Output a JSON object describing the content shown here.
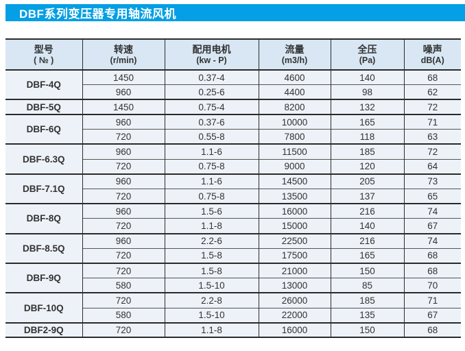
{
  "title": "DBF系列变压器专用轴流风机",
  "colors": {
    "accent_blue": "#049fe4",
    "header_bg": "#d8e7f3",
    "body_bg": "#edf2f8",
    "border_dark": "#2a2a2a",
    "text": "#323232"
  },
  "table": {
    "headers": [
      {
        "line1": "型号",
        "line2": "( № )"
      },
      {
        "line1": "转速",
        "line2": "(r/min)"
      },
      {
        "line1": "配用电机",
        "line2": "(kw - P)"
      },
      {
        "line1": "流量",
        "line2": "(m3/h)"
      },
      {
        "line1": "全压",
        "line2": "(Pa)"
      },
      {
        "line1": "噪声",
        "line2": "dB(A)"
      }
    ],
    "column_names": [
      "model",
      "rpm",
      "motor",
      "flow",
      "pressure",
      "noise"
    ],
    "groups": [
      {
        "model": "DBF-4Q",
        "rows": [
          [
            "1450",
            "0.37-4",
            "4600",
            "140",
            "68"
          ],
          [
            "960",
            "0.25-6",
            "4400",
            "98",
            "62"
          ]
        ]
      },
      {
        "model": "DBF-5Q",
        "rows": [
          [
            "1450",
            "0.75-4",
            "8200",
            "132",
            "72"
          ]
        ]
      },
      {
        "model": "DBF-6Q",
        "rows": [
          [
            "960",
            "0.37-6",
            "10000",
            "165",
            "71"
          ],
          [
            "720",
            "0.55-8",
            "7800",
            "118",
            "63"
          ]
        ]
      },
      {
        "model": "DBF-6.3Q",
        "rows": [
          [
            "960",
            "1.1-6",
            "11500",
            "185",
            "72"
          ],
          [
            "720",
            "0.75-8",
            "9000",
            "120",
            "64"
          ]
        ]
      },
      {
        "model": "DBF-7.1Q",
        "rows": [
          [
            "960",
            "1.1-6",
            "14500",
            "205",
            "73"
          ],
          [
            "720",
            "0.75-8",
            "13500",
            "137",
            "65"
          ]
        ]
      },
      {
        "model": "DBF-8Q",
        "rows": [
          [
            "960",
            "1.5-6",
            "16000",
            "216",
            "74"
          ],
          [
            "720",
            "1.1-8",
            "15000",
            "140",
            "67"
          ]
        ]
      },
      {
        "model": "DBF-8.5Q",
        "rows": [
          [
            "960",
            "2.2-6",
            "22500",
            "216",
            "74"
          ],
          [
            "720",
            "1.5-8",
            "17500",
            "165",
            "68"
          ]
        ]
      },
      {
        "model": "DBF-9Q",
        "rows": [
          [
            "720",
            "1.5-8",
            "21000",
            "150",
            "68"
          ],
          [
            "580",
            "1.5-10",
            "13000",
            "85",
            "70"
          ]
        ]
      },
      {
        "model": "DBF-10Q",
        "rows": [
          [
            "720",
            "2.2-8",
            "26000",
            "185",
            "71"
          ],
          [
            "580",
            "1.5-10",
            "22000",
            "135",
            "67"
          ]
        ]
      },
      {
        "model": "DBF2-9Q",
        "rows": [
          [
            "720",
            "1.1-8",
            "16000",
            "150",
            "68"
          ]
        ]
      }
    ]
  }
}
